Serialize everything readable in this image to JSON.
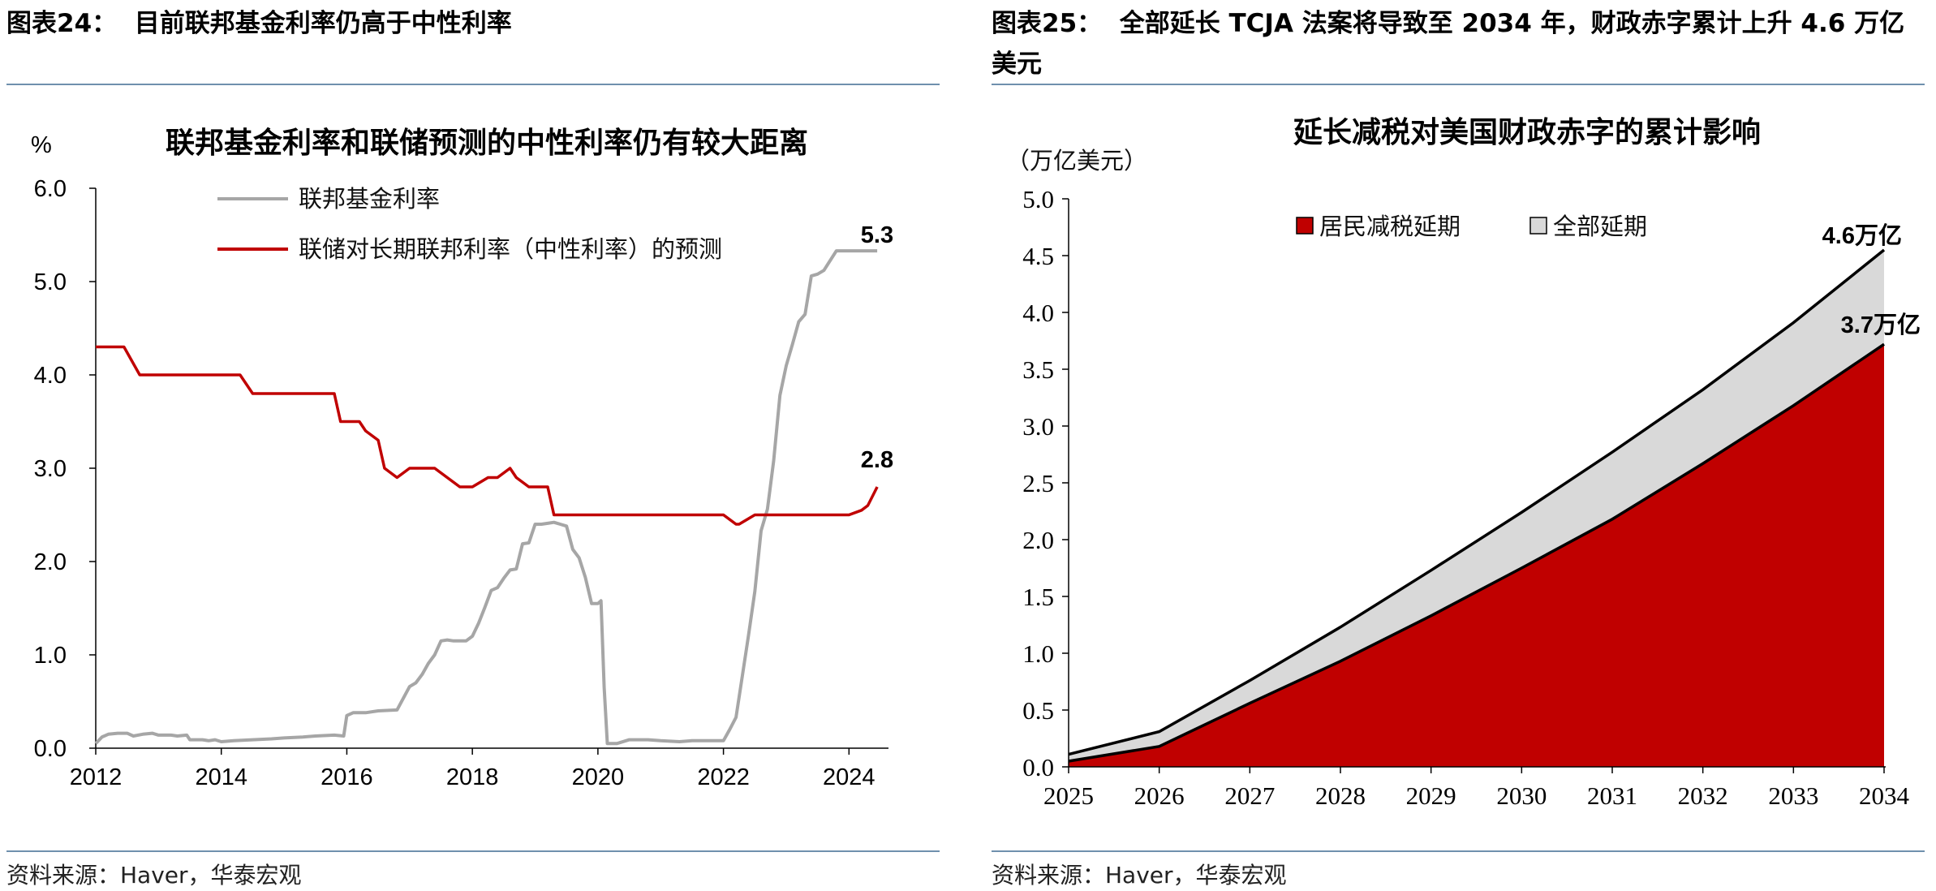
{
  "left": {
    "figure_title": "图表24：  目前联邦基金利率仍高于中性利率",
    "source": "资料来源：Haver，华泰宏观"
  },
  "right": {
    "figure_title": "图表25：  全部延长 TCJA 法案将导致至 2034 年，财政赤字累计上升 4.6 万亿美元",
    "source": "资料来源：Haver，华泰宏观"
  },
  "colors": {
    "red": "#c00000",
    "gray": "#a6a6a6",
    "rule": "#6f90ad",
    "light_fill": "#d9d9d9"
  },
  "chart_data": [
    {
      "type": "line",
      "title": "联邦基金利率和联储预测的中性利率仍有较大距离",
      "ylabel": "%",
      "ylim": [
        0,
        6
      ],
      "yticks": [
        "0.0",
        "1.0",
        "2.0",
        "3.0",
        "4.0",
        "5.0",
        "6.0"
      ],
      "xlim": [
        2012,
        2024.5
      ],
      "xticks": [
        "2012",
        "2014",
        "2016",
        "2018",
        "2020",
        "2022",
        "2024"
      ],
      "legend_position": "top",
      "series": [
        {
          "name": "联邦基金利率",
          "color": "#a6a6a6",
          "x": [
            2012.0,
            2012.1,
            2012.2,
            2012.35,
            2012.5,
            2012.6,
            2012.75,
            2012.9,
            2013.0,
            2013.2,
            2013.3,
            2013.45,
            2013.5,
            2013.7,
            2013.8,
            2013.9,
            2014.0,
            2014.2,
            2014.5,
            2014.8,
            2015.0,
            2015.3,
            2015.5,
            2015.8,
            2015.95,
            2016.0,
            2016.1,
            2016.3,
            2016.5,
            2016.8,
            2017.0,
            2017.1,
            2017.2,
            2017.3,
            2017.4,
            2017.5,
            2017.6,
            2017.7,
            2017.9,
            2018.0,
            2018.1,
            2018.2,
            2018.3,
            2018.4,
            2018.5,
            2018.6,
            2018.7,
            2018.8,
            2018.9,
            2019.0,
            2019.1,
            2019.2,
            2019.3,
            2019.4,
            2019.5,
            2019.6,
            2019.7,
            2019.8,
            2019.9,
            2020.0,
            2020.05,
            2020.1,
            2020.15,
            2020.3,
            2020.5,
            2020.8,
            2021.0,
            2021.3,
            2021.5,
            2021.8,
            2022.0,
            2022.1,
            2022.2,
            2022.3,
            2022.4,
            2022.5,
            2022.6,
            2022.7,
            2022.8,
            2022.9,
            2023.0,
            2023.1,
            2023.2,
            2023.3,
            2023.4,
            2023.5,
            2023.6,
            2023.8,
            2024.0,
            2024.3,
            2024.45
          ],
          "values": [
            0.05,
            0.12,
            0.15,
            0.16,
            0.16,
            0.13,
            0.15,
            0.16,
            0.14,
            0.14,
            0.13,
            0.14,
            0.09,
            0.09,
            0.08,
            0.09,
            0.07,
            0.08,
            0.09,
            0.1,
            0.11,
            0.12,
            0.13,
            0.14,
            0.13,
            0.35,
            0.38,
            0.38,
            0.4,
            0.41,
            0.66,
            0.7,
            0.79,
            0.91,
            1.0,
            1.15,
            1.16,
            1.15,
            1.15,
            1.2,
            1.34,
            1.51,
            1.69,
            1.72,
            1.82,
            1.91,
            1.92,
            2.19,
            2.2,
            2.4,
            2.4,
            2.41,
            2.42,
            2.4,
            2.38,
            2.13,
            2.04,
            1.83,
            1.55,
            1.55,
            1.58,
            0.65,
            0.05,
            0.05,
            0.09,
            0.09,
            0.08,
            0.07,
            0.08,
            0.08,
            0.08,
            0.2,
            0.33,
            0.77,
            1.21,
            1.68,
            2.33,
            2.56,
            3.08,
            3.78,
            4.1,
            4.33,
            4.57,
            4.65,
            5.06,
            5.08,
            5.12,
            5.33,
            5.33,
            5.33,
            5.33
          ],
          "end_label": "5.3"
        },
        {
          "name": "联储对长期联邦利率（中性利率）的预测",
          "color": "#c00000",
          "x": [
            2012.0,
            2012.3,
            2012.45,
            2012.7,
            2013.0,
            2013.5,
            2014.0,
            2014.3,
            2014.5,
            2015.0,
            2015.5,
            2015.8,
            2015.9,
            2016.2,
            2016.3,
            2016.5,
            2016.6,
            2016.8,
            2017.0,
            2017.3,
            2017.4,
            2017.8,
            2017.9,
            2018.0,
            2018.25,
            2018.4,
            2018.6,
            2018.7,
            2018.9,
            2019.0,
            2019.2,
            2019.3,
            2019.5,
            2019.8,
            2020.0,
            2020.5,
            2021.0,
            2021.5,
            2021.75,
            2022.0,
            2022.2,
            2022.25,
            2022.5,
            2023.0,
            2023.5,
            2024.0,
            2024.2,
            2024.3,
            2024.45
          ],
          "values": [
            4.3,
            4.3,
            4.3,
            4.0,
            4.0,
            4.0,
            4.0,
            4.0,
            3.8,
            3.8,
            3.8,
            3.8,
            3.5,
            3.5,
            3.4,
            3.3,
            3.0,
            2.9,
            3.0,
            3.0,
            3.0,
            2.8,
            2.8,
            2.8,
            2.9,
            2.9,
            3.0,
            2.9,
            2.8,
            2.8,
            2.8,
            2.5,
            2.5,
            2.5,
            2.5,
            2.5,
            2.5,
            2.5,
            2.5,
            2.5,
            2.4,
            2.4,
            2.5,
            2.5,
            2.5,
            2.5,
            2.55,
            2.6,
            2.8
          ],
          "end_label": "2.8"
        }
      ]
    },
    {
      "type": "area",
      "title": "延长减税对美国财政赤字的累计影响",
      "ylabel": "（万亿美元）",
      "ylim": [
        0,
        5
      ],
      "yticks": [
        "0.0",
        "0.5",
        "1.0",
        "1.5",
        "2.0",
        "2.5",
        "3.0",
        "3.5",
        "4.0",
        "4.5",
        "5.0"
      ],
      "categories": [
        "2025",
        "2026",
        "2027",
        "2028",
        "2029",
        "2030",
        "2031",
        "2032",
        "2033",
        "2034"
      ],
      "legend_position": "top",
      "series": [
        {
          "name": "居民减税延期",
          "color": "#c00000",
          "values": [
            0.05,
            0.18,
            0.56,
            0.93,
            1.33,
            1.75,
            2.18,
            2.67,
            3.18,
            3.72
          ],
          "end_label": "3.7万亿"
        },
        {
          "name": "全部延期",
          "color": "#d9d9d9",
          "values": [
            0.11,
            0.31,
            0.76,
            1.23,
            1.73,
            2.24,
            2.77,
            3.32,
            3.91,
            4.55
          ],
          "end_label": "4.6万亿"
        }
      ]
    }
  ]
}
